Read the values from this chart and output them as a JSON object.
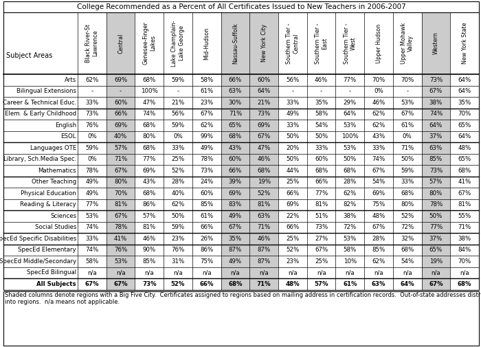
{
  "title": "College Recommended as a Percent of All Certificates Issued to New Teachers in 2006-2007",
  "col_headers": [
    "Black River-St\nLawrence",
    "Central",
    "Genesee-Finger\nLakes",
    "Lake Champlain-\nLake George",
    "Mid-Hudson",
    "Nassau-Suffolk",
    "New York City",
    "Southern Tier -\nCentral",
    "Southern Tier -\nEast",
    "Southern Tier -\nWest",
    "Upper Hudson",
    "Upper Mohawk\nValley",
    "Western",
    "New York State"
  ],
  "shaded_data_cols": [
    1,
    5,
    6,
    12
  ],
  "rows": [
    [
      "Arts",
      "62%",
      "69%",
      "68%",
      "59%",
      "58%",
      "66%",
      "60%",
      "56%",
      "46%",
      "77%",
      "70%",
      "70%",
      "73%",
      "64%"
    ],
    [
      "Bilingual Extensions",
      "-",
      "-",
      "100%",
      "-",
      "61%",
      "63%",
      "64%",
      "-",
      "-",
      "-",
      "0%",
      "-",
      "67%",
      "64%"
    ],
    [
      "Career & Technical Educ.",
      "33%",
      "60%",
      "47%",
      "21%",
      "23%",
      "30%",
      "21%",
      "33%",
      "35%",
      "29%",
      "46%",
      "53%",
      "38%",
      "35%"
    ],
    [
      "Elem. & Early Childhood",
      "73%",
      "66%",
      "74%",
      "56%",
      "67%",
      "71%",
      "73%",
      "49%",
      "58%",
      "64%",
      "62%",
      "67%",
      "74%",
      "70%"
    ],
    [
      "English",
      "76%",
      "69%",
      "68%",
      "59%",
      "62%",
      "65%",
      "69%",
      "33%",
      "54%",
      "53%",
      "62%",
      "61%",
      "64%",
      "65%"
    ],
    [
      "ESOL",
      "0%",
      "40%",
      "80%",
      "0%",
      "99%",
      "68%",
      "67%",
      "50%",
      "50%",
      "100%",
      "43%",
      "0%",
      "37%",
      "64%"
    ],
    [
      "Languages OTE",
      "59%",
      "57%",
      "68%",
      "33%",
      "49%",
      "43%",
      "47%",
      "20%",
      "33%",
      "53%",
      "33%",
      "71%",
      "63%",
      "48%"
    ],
    [
      "Library, Sch.Media Spec.",
      "0%",
      "71%",
      "77%",
      "25%",
      "78%",
      "60%",
      "46%",
      "50%",
      "60%",
      "50%",
      "74%",
      "50%",
      "85%",
      "65%"
    ],
    [
      "Mathematics",
      "78%",
      "67%",
      "69%",
      "52%",
      "73%",
      "66%",
      "68%",
      "44%",
      "68%",
      "68%",
      "67%",
      "59%",
      "73%",
      "68%"
    ],
    [
      "Other Teaching",
      "49%",
      "80%",
      "43%",
      "28%",
      "24%",
      "39%",
      "19%",
      "25%",
      "66%",
      "28%",
      "54%",
      "33%",
      "57%",
      "41%"
    ],
    [
      "Physical Education",
      "49%",
      "70%",
      "68%",
      "40%",
      "60%",
      "69%",
      "52%",
      "66%",
      "77%",
      "62%",
      "69%",
      "68%",
      "80%",
      "67%"
    ],
    [
      "Reading & Literacy",
      "77%",
      "81%",
      "86%",
      "62%",
      "85%",
      "83%",
      "81%",
      "69%",
      "81%",
      "82%",
      "75%",
      "80%",
      "78%",
      "81%"
    ],
    [
      "Sciences",
      "53%",
      "67%",
      "57%",
      "50%",
      "61%",
      "49%",
      "63%",
      "22%",
      "51%",
      "38%",
      "48%",
      "52%",
      "50%",
      "55%"
    ],
    [
      "Social Studies",
      "74%",
      "78%",
      "81%",
      "59%",
      "66%",
      "67%",
      "71%",
      "66%",
      "73%",
      "72%",
      "67%",
      "72%",
      "77%",
      "71%"
    ],
    [
      "SpecEd Specific Disabilities",
      "33%",
      "41%",
      "46%",
      "23%",
      "26%",
      "35%",
      "46%",
      "25%",
      "27%",
      "53%",
      "28%",
      "32%",
      "37%",
      "38%"
    ],
    [
      "SpecEd Elementary",
      "74%",
      "76%",
      "90%",
      "76%",
      "86%",
      "87%",
      "87%",
      "52%",
      "67%",
      "58%",
      "85%",
      "68%",
      "65%",
      "84%"
    ],
    [
      "SpecEd Middle/Secondary",
      "58%",
      "53%",
      "85%",
      "31%",
      "75%",
      "49%",
      "87%",
      "23%",
      "25%",
      "10%",
      "62%",
      "54%",
      "19%",
      "70%"
    ],
    [
      "SpecEd Bilingual",
      "n/a",
      "n/a",
      "n/a",
      "n/a",
      "n/a",
      "n/a",
      "n/a",
      "n/a",
      "n/a",
      "n/a",
      "n/a",
      "n/a",
      "n/a",
      "n/a"
    ],
    [
      "All Subjects",
      "67%",
      "67%",
      "73%",
      "52%",
      "66%",
      "68%",
      "71%",
      "48%",
      "57%",
      "61%",
      "63%",
      "64%",
      "67%",
      "68%"
    ]
  ],
  "footer_line1": "Shaded columns denote regions with a Big Five City.  Certificates assigned to regions based on mailing address in certification records.  Out-of-state addresses distributed",
  "footer_line2": "into regions.  n/a means not applicable.",
  "thick_border_after_rows": [
    2,
    5,
    8,
    11,
    13,
    14,
    17
  ],
  "bold_last_row": true,
  "shaded_color": "#cccccc",
  "bg_color": "#ffffff",
  "title_fontsize": 7.5,
  "header_fontsize": 5.8,
  "cell_fontsize": 6.2,
  "footer_fontsize": 6.0
}
